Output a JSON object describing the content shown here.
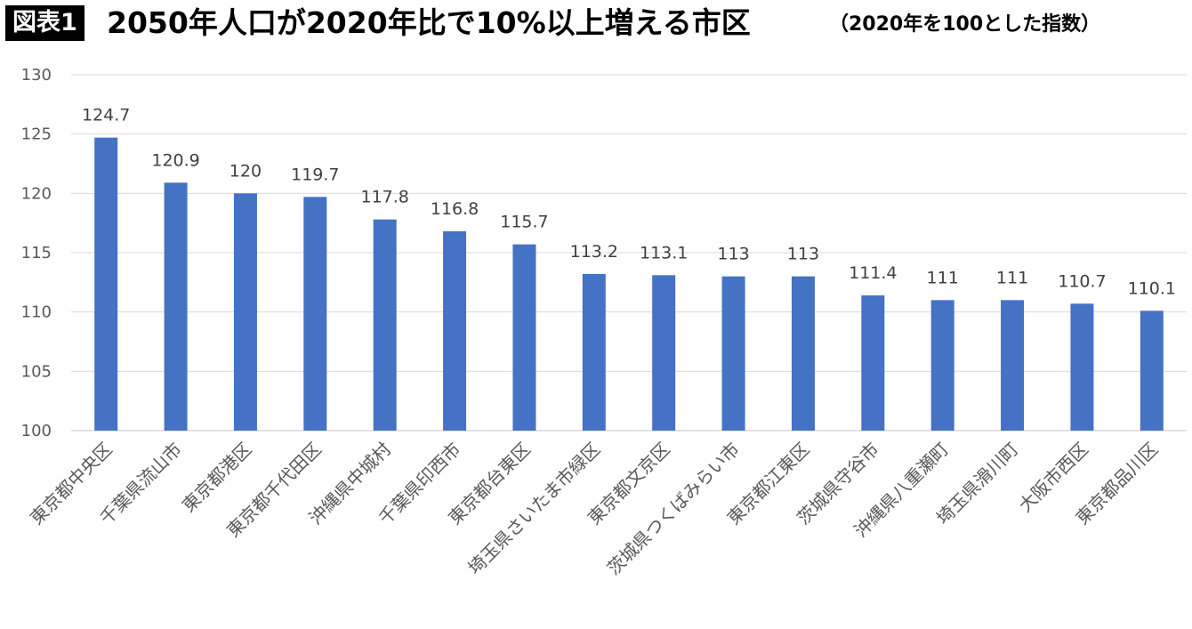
{
  "header": {
    "badge": "図表1",
    "title": "2050年人口が2020年比で10%以上増える市区",
    "subtitle": "（2020年を100とした指数）"
  },
  "chart_data": {
    "type": "bar",
    "categories": [
      "東京都中央区",
      "千葉県流山市",
      "東京都港区",
      "東京都千代田区",
      "沖縄県中城村",
      "千葉県印西市",
      "東京都台東区",
      "埼玉県さいたま市緑区",
      "東京都文京区",
      "茨城県つくばみらい市",
      "東京都江東区",
      "茨城県守谷市",
      "沖縄県八重瀬町",
      "埼玉県滑川町",
      "大阪市西区",
      "東京都品川区"
    ],
    "values": [
      124.7,
      120.9,
      120,
      119.7,
      117.8,
      116.8,
      115.7,
      113.2,
      113.1,
      113,
      113,
      111.4,
      111,
      111,
      110.7,
      110.1
    ],
    "value_labels": [
      "124.7",
      "120.9",
      "120",
      "119.7",
      "117.8",
      "116.8",
      "115.7",
      "113.2",
      "113.1",
      "113",
      "113",
      "111.4",
      "111",
      "111",
      "110.7",
      "110.1"
    ],
    "yticks": [
      "100",
      "105",
      "110",
      "115",
      "120",
      "125",
      "130"
    ],
    "ylim": [
      100,
      130
    ],
    "grid": true,
    "bar_color": "#4472c4",
    "grid_color": "#d9d9d9"
  }
}
